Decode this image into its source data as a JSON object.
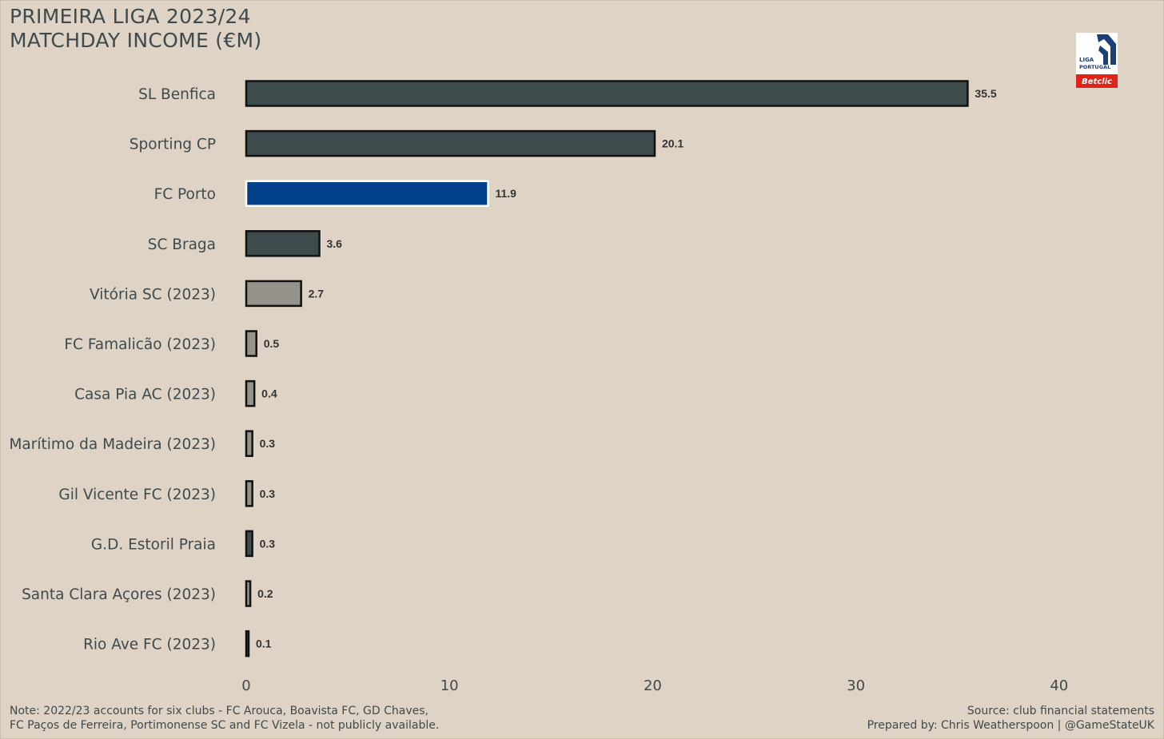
{
  "title_lines": [
    "PRIMEIRA LIGA 2023/24",
    "MATCHDAY INCOME (€M)"
  ],
  "logo": {
    "icon": "liga-portugal-betclic-logo",
    "text_line1": "LIGA",
    "text_line2": "PORTUGAL",
    "sponsor": "Betclic",
    "colors": {
      "navy": "#1d3f78",
      "red": "#e2231a",
      "white": "#ffffff"
    }
  },
  "chart_data": {
    "type": "bar",
    "orientation": "horizontal",
    "categories": [
      "SL Benfica",
      "Sporting CP",
      "FC Porto",
      "SC Braga",
      "Vitória SC (2023)",
      "FC Famalicão (2023)",
      "Casa Pia AC (2023)",
      "Marítimo da Madeira (2023)",
      "Gil Vicente FC (2023)",
      "G.D. Estoril Praia",
      "Santa Clara Açores (2023)",
      "Rio Ave FC (2023)"
    ],
    "values": [
      35.5,
      20.1,
      11.9,
      3.6,
      2.7,
      0.5,
      0.4,
      0.3,
      0.3,
      0.3,
      0.2,
      0.1
    ],
    "value_labels": [
      "35.5",
      "20.1",
      "11.9",
      "3.6",
      "2.7",
      "0.5",
      "0.4",
      "0.3",
      "0.3",
      "0.3",
      "0.2",
      "0.1"
    ],
    "bar_colors": [
      "#3d4b4d",
      "#3d4b4d",
      "#00408a",
      "#3d4b4d",
      "#95938b",
      "#95938b",
      "#95938b",
      "#95938b",
      "#95938b",
      "#3d4b4d",
      "#95938b",
      "#3d4b4d"
    ],
    "bar_outline_colors": [
      "#111111",
      "#111111",
      "#ffffff",
      "#111111",
      "#111111",
      "#111111",
      "#111111",
      "#111111",
      "#111111",
      "#111111",
      "#111111",
      "#111111"
    ],
    "xticks": [
      0,
      10,
      20,
      30,
      40
    ],
    "xtick_labels": [
      "0",
      "10",
      "20",
      "30",
      "40"
    ],
    "xlim": [
      0,
      45
    ],
    "grid": false,
    "xlabel": "",
    "ylabel": ""
  },
  "footer": {
    "note_lines": [
      "Note: 2022/23 accounts for six clubs - FC Arouca, Boavista FC, GD Chaves,",
      "FC Paços de Ferreira, Portimonense SC and FC Vizela - not publicly available."
    ],
    "source": "Source: club financial statements",
    "prepared_by": "Prepared by: Chris Weatherspoon | @GameStateUK"
  },
  "colors": {
    "background": "#ded3c4",
    "text": "#3f4a4e",
    "highlight": "#00408a"
  }
}
